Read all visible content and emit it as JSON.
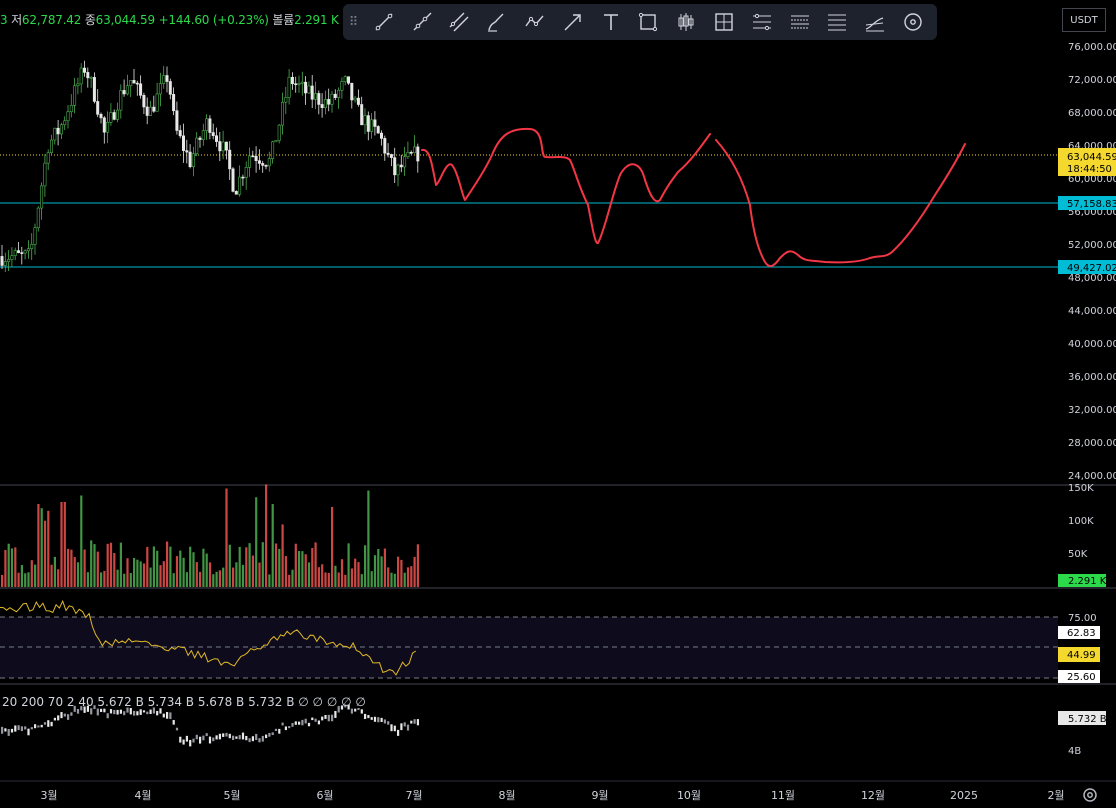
{
  "ohlc": {
    "low_label": "저",
    "low_value": "62,787.42",
    "close_label": "종",
    "close_value": "63,044.59",
    "change_value": "+144.60 (+0.23%)",
    "volume_label": "볼륨",
    "volume_value": "2.291 K"
  },
  "toolbar": {
    "tools": [
      {
        "name": "trend-line-icon"
      },
      {
        "name": "ray-icon"
      },
      {
        "name": "parallel-channel-icon"
      },
      {
        "name": "brush-icon"
      },
      {
        "name": "path-icon"
      },
      {
        "name": "arrow-icon"
      },
      {
        "name": "text-icon"
      },
      {
        "name": "rectangle-icon"
      },
      {
        "name": "candles-icon"
      },
      {
        "name": "long-position-icon"
      },
      {
        "name": "fib-retracement-icon"
      },
      {
        "name": "gann-fan-icon"
      },
      {
        "name": "pitchfork-icon"
      },
      {
        "name": "regression-icon"
      },
      {
        "name": "circle-target-icon"
      }
    ]
  },
  "currency": "USDT",
  "price_axis": {
    "ticks": [
      "76,000.00",
      "72,000.00",
      "68,000.00",
      "64,000.00",
      "60,000.00",
      "56,000.00",
      "52,000.00",
      "48,000.00",
      "44,000.00",
      "40,000.00",
      "36,000.00",
      "32,000.00",
      "28,000.00",
      "24,000.00"
    ],
    "current_price": "63,044.59",
    "countdown": "18:44:50",
    "level_1": "57,158.83",
    "level_2": "49,427.02"
  },
  "volume_axis": {
    "ticks": [
      "150K",
      "100K",
      "50K"
    ],
    "current": "2.291 K"
  },
  "rsi_axis": {
    "upper": "75.00",
    "ma_value": "62.83",
    "rsi_value": "44.99",
    "lower": "25.60"
  },
  "bottom_indicator": {
    "legend": "20 200 70 2 40  5.672 B  5.734 B  5.678 B  5.732 B  ∅ ∅ ∅ ∅ ∅",
    "current": "5.732 B",
    "tick": "4B"
  },
  "time_axis": [
    "3월",
    "4월",
    "5월",
    "6월",
    "7월",
    "8월",
    "9월",
    "10월",
    "11월",
    "12월",
    "2025",
    "2월"
  ],
  "colors": {
    "up": "#26a69a",
    "down": "#ef5350",
    "candle_up": "#4caf50",
    "drawing": "#f23645",
    "price_tag": "#f5d82e",
    "level_tag": "#00bcd4",
    "rsi": "#e0b828"
  }
}
